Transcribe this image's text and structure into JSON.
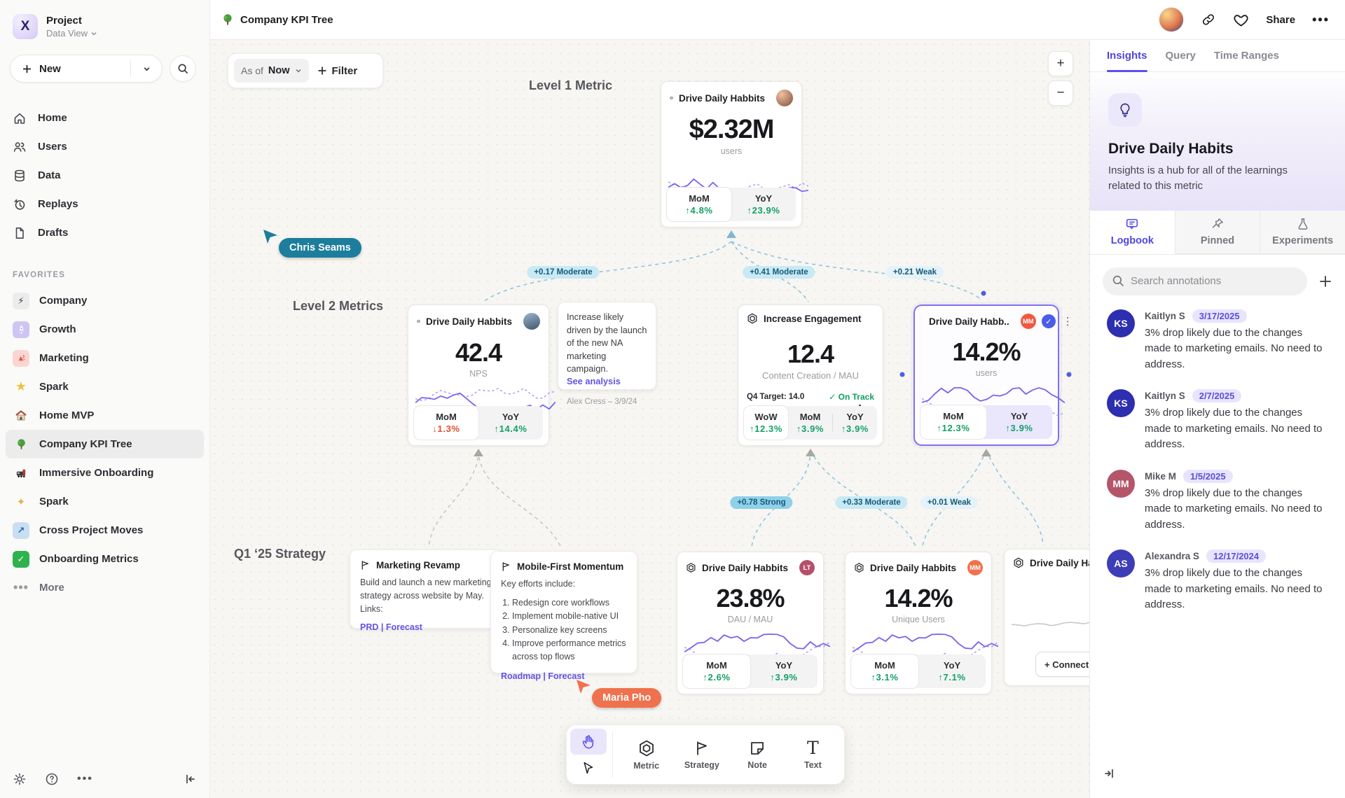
{
  "sidebar": {
    "project_name": "Project",
    "project_view": "Data View",
    "new_label": "New",
    "nav": [
      {
        "label": "Home",
        "icon": "home-icon"
      },
      {
        "label": "Users",
        "icon": "users-icon"
      },
      {
        "label": "Data",
        "icon": "database-icon"
      },
      {
        "label": "Replays",
        "icon": "replay-icon"
      },
      {
        "label": "Drafts",
        "icon": "draft-icon"
      }
    ],
    "favorites_title": "FAVORITES",
    "favorites": [
      {
        "label": "Company",
        "icon": "lightning"
      },
      {
        "label": "Growth",
        "icon": "rocket"
      },
      {
        "label": "Marketing",
        "icon": "confetti"
      },
      {
        "label": "Spark",
        "icon": "star"
      },
      {
        "label": "Home MVP",
        "icon": "house"
      },
      {
        "label": "Company KPI Tree",
        "icon": "tree",
        "selected": true
      },
      {
        "label": "Immersive Onboarding",
        "icon": "train"
      },
      {
        "label": "Spark",
        "icon": "sparkles"
      },
      {
        "label": "Cross Project Moves",
        "icon": "arrow-up-right"
      },
      {
        "label": "Onboarding Metrics",
        "icon": "check"
      }
    ],
    "more_label": "More"
  },
  "topbar": {
    "title": "Company KPI Tree",
    "share_label": "Share"
  },
  "canvas": {
    "asof_prefix": "As of",
    "asof_value": "Now",
    "filter_label": "Filter",
    "level1_label": "Level 1 Metric",
    "level2_label": "Level 2 Metrics",
    "strategy_label": "Q1 ‘25 Strategy",
    "zoom_in": "+",
    "zoom_out": "−",
    "cards": [
      {
        "title": "Drive Daily Habbits",
        "value": "$2.32M",
        "unit": "users",
        "chips": [
          {
            "label": "MoM",
            "delta": "↑4.8%"
          },
          {
            "label": "YoY",
            "delta": "↑23.9%"
          }
        ]
      },
      {
        "title": "Drive Daily Habbits",
        "value": "42.4",
        "unit": "NPS",
        "chips": [
          {
            "label": "MoM",
            "delta": "↓1.3%"
          },
          {
            "label": "YoY",
            "delta": "↑14.4%"
          }
        ]
      },
      {
        "title": "Increase Engagement",
        "value": "12.4",
        "unit": "Content Creation / MAU",
        "target_label": "Q4 Target: 14.0",
        "target_status": "On Track",
        "chips": [
          {
            "label": "WoW",
            "delta": "↑12.3%"
          },
          {
            "label": "MoM",
            "delta": "↑3.9%"
          },
          {
            "label": "YoY",
            "delta": "↑3.9%"
          }
        ]
      },
      {
        "title": "Drive Daily Habb..",
        "value": "14.2%",
        "unit": "users",
        "badge": "MM",
        "chips": [
          {
            "label": "MoM",
            "delta": "↑12.3%"
          },
          {
            "label": "YoY",
            "delta": "↑3.9%"
          }
        ]
      },
      {
        "title": "Drive Daily Habbits",
        "value": "23.8%",
        "unit": "DAU / MAU",
        "badge": "LT",
        "chips": [
          {
            "label": "MoM",
            "delta": "↑2.6%"
          },
          {
            "label": "YoY",
            "delta": "↑3.9%"
          }
        ]
      },
      {
        "title": "Drive Daily Habbits",
        "value": "14.2%",
        "unit": "Unique Users",
        "badge": "MM",
        "chips": [
          {
            "label": "MoM",
            "delta": "↑3.1%"
          },
          {
            "label": "YoY",
            "delta": "↑7.1%"
          }
        ]
      },
      {
        "title": "Drive Daily Habbits",
        "connect_label": "+ Connect"
      }
    ],
    "annotation_note": {
      "body": "Increase likely driven by the launch of the new NA marketing campaign.",
      "link": "See analysis",
      "author": "Alex Cress – 3/9/24"
    },
    "strategies": [
      {
        "title": "Marketing Revamp",
        "body": "Build and launch a new marketing strategy across website by May. Links:",
        "links": "PRD | Forecast"
      },
      {
        "title": "Mobile-First Momentum",
        "intro": "Key efforts include:",
        "items": [
          "Redesign core workflows",
          "Implement mobile-native UI",
          "Personalize key screens",
          "Improve performance metrics across top flows"
        ],
        "links": "Roadmap | Forecast"
      }
    ],
    "edge_labels": [
      "+0.17 Moderate",
      "+0.41 Moderate",
      "+0.21 Weak",
      "+0.78 Strong",
      "+0.33 Moderate",
      "+0.01 Weak"
    ],
    "cursors": [
      {
        "name": "Chris Seams",
        "color": "#1c7d9c"
      },
      {
        "name": "Maria Pho",
        "color": "#f0714d"
      }
    ],
    "toolbar": {
      "tools": [
        "Metric",
        "Strategy",
        "Note",
        "Text"
      ]
    }
  },
  "right_panel": {
    "tabs": [
      "Insights",
      "Query",
      "Time Ranges"
    ],
    "title": "Drive Daily Habits",
    "description": "Insights is a hub for all of the learnings related to this metric",
    "subtabs": [
      "Logbook",
      "Pinned",
      "Experiments"
    ],
    "search_placeholder": "Search annotations",
    "annotations": [
      {
        "initials": "KS",
        "name": "Kaitlyn S",
        "date": "3/17/2025",
        "color": "#2d2eb0",
        "body": "3% drop likely due to the changes made to marketing emails. No need to address."
      },
      {
        "initials": "KS",
        "name": "Kaitlyn S",
        "date": "2/7/2025",
        "color": "#2d2eb0",
        "body": "3% drop likely due to the changes made to marketing emails. No need to address."
      },
      {
        "initials": "MM",
        "name": "Mike M",
        "date": "1/5/2025",
        "color": "#b4556a",
        "body": "3% drop likely due to the changes made to marketing emails. No need to address."
      },
      {
        "initials": "AS",
        "name": "Alexandra S",
        "date": "12/17/2024",
        "color": "#3d3db8",
        "body": "3% drop likely due to the changes made to marketing emails. No need to address."
      }
    ]
  },
  "colors": {
    "accent": "#6c5ce7",
    "positive": "#13a066",
    "negative": "#e2502f",
    "edge_blue": "#8ac6e2"
  }
}
